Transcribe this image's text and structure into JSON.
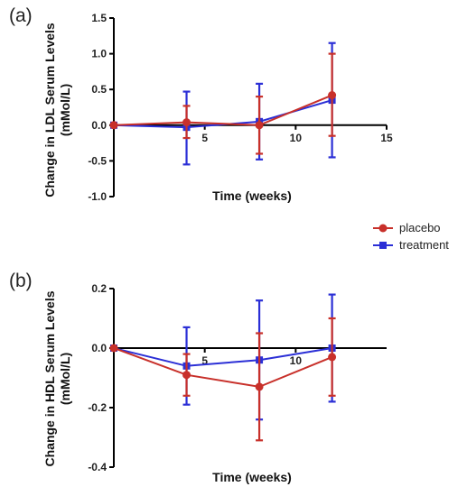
{
  "chart_data": [
    {
      "type": "line",
      "panel_label": "(a)",
      "xlabel": "Time (weeks)",
      "ylabel_line1": "Change in LDL Serum Levels",
      "ylabel_line2": "(mMol/L)",
      "xlim": [
        0,
        15
      ],
      "ylim": [
        -1.0,
        1.5
      ],
      "x_ticks": [
        "5",
        "10",
        "15"
      ],
      "x_tick_values": [
        5,
        10,
        15
      ],
      "y_ticks": [
        "1.5",
        "1.0",
        "0.5",
        "0.0",
        "-0.5",
        "-1.0"
      ],
      "y_tick_values": [
        1.5,
        1.0,
        0.5,
        0.0,
        -0.5,
        -1.0
      ],
      "series": [
        {
          "name": "placebo",
          "color": "#c8302a",
          "marker": "circle",
          "x": [
            0,
            4,
            8,
            12
          ],
          "y": [
            0.0,
            0.04,
            0.0,
            0.42
          ],
          "err_low": [
            0.0,
            -0.18,
            -0.4,
            -0.15
          ],
          "err_high": [
            0.0,
            0.27,
            0.4,
            1.0
          ]
        },
        {
          "name": "treatment",
          "color": "#2b2fd6",
          "marker": "square",
          "x": [
            0,
            4,
            8,
            12
          ],
          "y": [
            0.0,
            -0.03,
            0.05,
            0.35
          ],
          "err_low": [
            0.0,
            -0.55,
            -0.48,
            -0.45
          ],
          "err_high": [
            0.0,
            0.47,
            0.58,
            1.15
          ]
        }
      ]
    },
    {
      "type": "line",
      "panel_label": "(b)",
      "xlabel": "Time (weeks)",
      "ylabel_line1": "Change in HDL Serum Levels",
      "ylabel_line2": "(mMol/L)",
      "xlim": [
        0,
        15
      ],
      "ylim": [
        -0.4,
        0.2
      ],
      "x_ticks": [
        "5",
        "10"
      ],
      "x_tick_values": [
        5,
        10
      ],
      "y_ticks": [
        "0.2",
        "0.0",
        "-0.2",
        "-0.4"
      ],
      "y_tick_values": [
        0.2,
        0.0,
        -0.2,
        -0.4
      ],
      "series": [
        {
          "name": "placebo",
          "color": "#c8302a",
          "marker": "circle",
          "x": [
            0,
            4,
            8,
            12
          ],
          "y": [
            0.0,
            -0.09,
            -0.13,
            -0.03
          ],
          "err_low": [
            0.0,
            -0.16,
            -0.31,
            -0.16
          ],
          "err_high": [
            0.0,
            -0.02,
            0.05,
            0.1
          ]
        },
        {
          "name": "treatment",
          "color": "#2b2fd6",
          "marker": "square",
          "x": [
            0,
            4,
            8,
            12
          ],
          "y": [
            0.0,
            -0.06,
            -0.04,
            0.0
          ],
          "err_low": [
            0.0,
            -0.19,
            -0.24,
            -0.18
          ],
          "err_high": [
            0.0,
            0.07,
            0.16,
            0.18
          ]
        }
      ]
    }
  ],
  "legend": {
    "placement": "right-middle",
    "entries": [
      {
        "label": "placebo",
        "color": "#c8302a",
        "marker": "circle"
      },
      {
        "label": "treatment",
        "color": "#2b2fd6",
        "marker": "square"
      }
    ]
  }
}
